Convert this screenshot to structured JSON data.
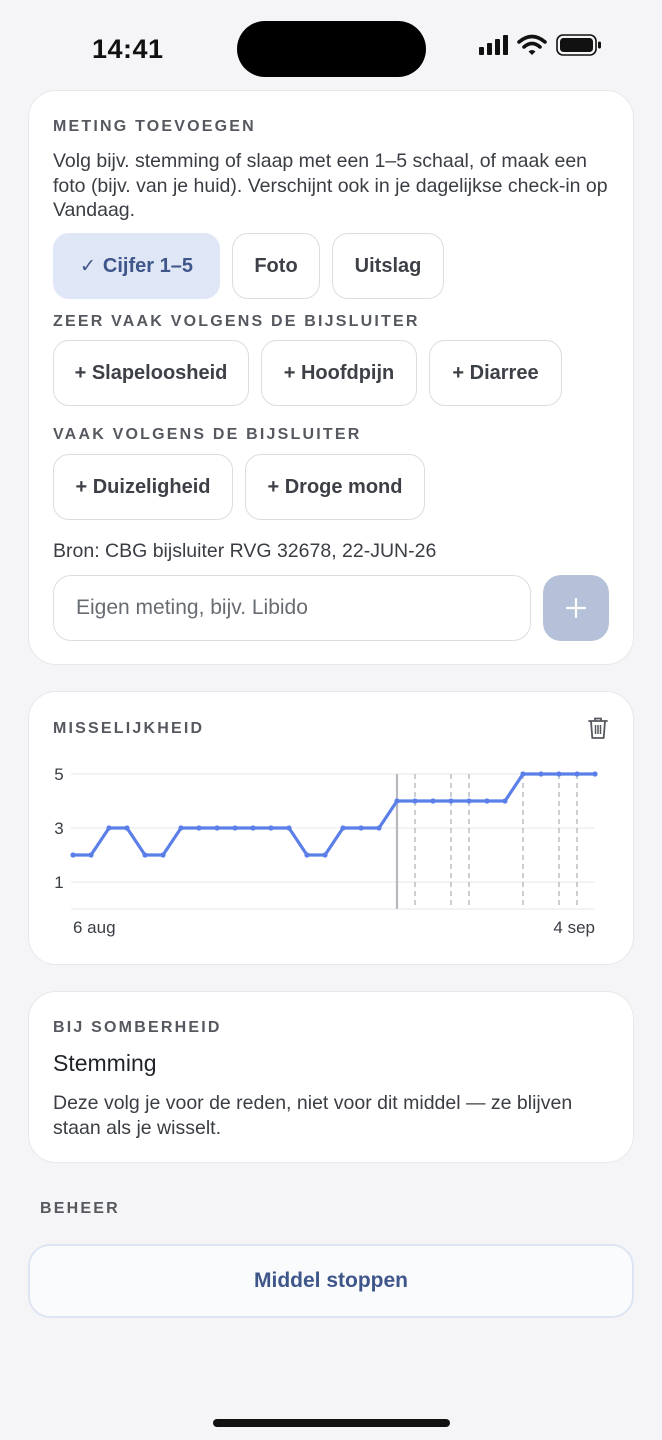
{
  "status_bar": {
    "time": "14:41"
  },
  "add_measurement": {
    "title": "METING TOEVOEGEN",
    "description": "Volg bijv. stemming of slaap met een 1–5 schaal, of maak een foto (bijv. van je huid). Verschijnt ook in je dagelijkse check-in op Vandaag.",
    "types": [
      {
        "label": "Cijfer 1–5",
        "check": "✓",
        "selected": true
      },
      {
        "label": "Foto",
        "selected": false
      },
      {
        "label": "Uitslag",
        "selected": false
      }
    ],
    "very_common_title": "ZEER VAAK VOLGENS DE BIJSLUITER",
    "very_common": [
      "+ Slapeloosheid",
      "+ Hoofdpijn",
      "+ Diarree"
    ],
    "common_title": "VAAK VOLGENS DE BIJSLUITER",
    "common": [
      "+ Duizeligheid",
      "+ Droge mond"
    ],
    "source": "Bron: CBG bijsluiter RVG 32678, 22-JUN-26",
    "custom_input": {
      "value": "",
      "placeholder": "Eigen meting, bijv. Libido"
    },
    "add_icon": "plus-icon"
  },
  "chart_card": {
    "title": "MISSELIJKHEID",
    "delete_icon": "trash-icon",
    "chart_data": {
      "type": "line",
      "title": "",
      "x_labels": [
        "6 aug",
        "4 sep"
      ],
      "x": [
        "6 aug",
        "7 aug",
        "8 aug",
        "9 aug",
        "10 aug",
        "11 aug",
        "12 aug",
        "13 aug",
        "14 aug",
        "15 aug",
        "16 aug",
        "17 aug",
        "18 aug",
        "19 aug",
        "20 aug",
        "21 aug",
        "22 aug",
        "23 aug",
        "24 aug",
        "25 aug",
        "26 aug",
        "27 aug",
        "28 aug",
        "29 aug",
        "30 aug",
        "31 aug",
        "1 sep",
        "2 sep",
        "3 sep",
        "4 sep"
      ],
      "series": [
        {
          "values": [
            2,
            2,
            3,
            3,
            2,
            2,
            3,
            3,
            3,
            3,
            3,
            3,
            3,
            2,
            2,
            3,
            3,
            3,
            4,
            4,
            4,
            4,
            4,
            4,
            4,
            5,
            5,
            5,
            5,
            5
          ],
          "color": "#5b7fe8"
        }
      ],
      "yticks": [
        1,
        3,
        5
      ],
      "ylim": [
        0,
        5
      ],
      "grid": true,
      "solid_marker_index": 18,
      "dashed_marker_indices": [
        19,
        21,
        22,
        25,
        27,
        28
      ],
      "marker_color": "#b6b8be"
    }
  },
  "reason_card": {
    "label": "BIJ SOMBERHEID",
    "title": "Stemming",
    "description": "Deze volg je voor de reden, niet voor dit middel — ze blijven staan als je wisselt."
  },
  "manage": {
    "title": "BEHEER",
    "stop_label": "Middel stoppen"
  }
}
